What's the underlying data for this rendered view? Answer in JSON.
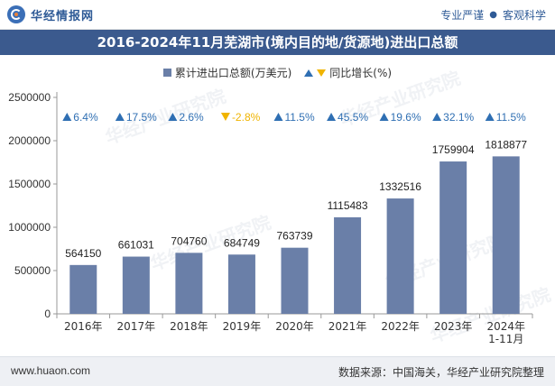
{
  "header": {
    "brand_name": "华经情报网",
    "tag_left": "专业严谨",
    "tag_sep": "●",
    "tag_right": "客观科学"
  },
  "chart_title": "2016-2024年11月芜湖市(境内目的地/货源地)进出口总额",
  "watermark_text": "华经产业研究院",
  "footer": {
    "site": "www.huaon.com",
    "source": "数据来源：中国海关，华经产业研究院整理"
  },
  "colors": {
    "bar": "#6a7fa8",
    "up": "#2f6fb3",
    "down": "#f0b400",
    "title_bg": "#3b5a8e"
  },
  "chart_data": {
    "type": "bar",
    "title": "2016-2024年11月芜湖市(境内目的地/货源地)进出口总额",
    "categories": [
      "2016年",
      "2017年",
      "2018年",
      "2019年",
      "2020年",
      "2021年",
      "2022年",
      "2023年",
      "2024年\n1-11月"
    ],
    "series": [
      {
        "name": "累计进出口总额(万美元)",
        "values": [
          564150,
          661031,
          704760,
          684749,
          763739,
          1115483,
          1332516,
          1759904,
          1818877
        ]
      },
      {
        "name": "同比增长(%)",
        "values": [
          6.4,
          17.5,
          2.6,
          -2.8,
          11.5,
          45.5,
          19.6,
          32.1,
          11.5
        ],
        "labels": [
          "6.4%",
          "17.5%",
          "2.6%",
          "-2.8%",
          "11.5%",
          "45.5%",
          "19.6%",
          "32.1%",
          "11.5%"
        ]
      }
    ],
    "ylim": [
      0,
      2500000
    ],
    "yticks": [
      0,
      500000,
      1000000,
      1500000,
      2000000,
      2500000
    ],
    "xlabel": "",
    "ylabel": "",
    "legend_position": "top-center",
    "grid": false
  }
}
